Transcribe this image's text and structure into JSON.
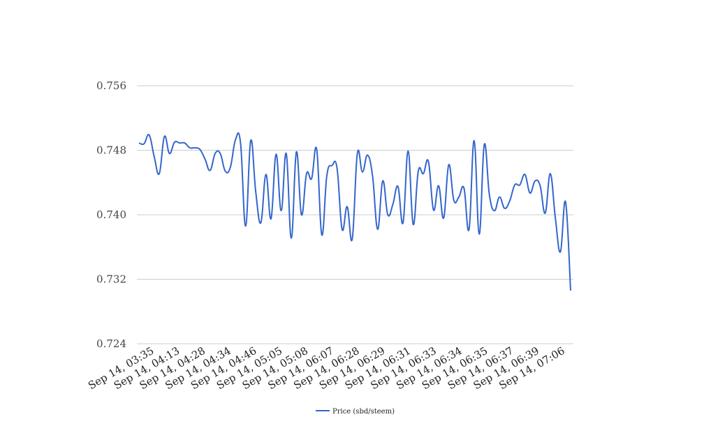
{
  "chart_data": {
    "type": "line",
    "title": "",
    "xlabel": "",
    "ylabel": "",
    "ylim": [
      0.724,
      0.756
    ],
    "yticks": [
      "0.724",
      "0.732",
      "0.740",
      "0.748",
      "0.756"
    ],
    "ytick_values": [
      0.724,
      0.732,
      0.74,
      0.748,
      0.756
    ],
    "grid": true,
    "legend_position": "bottom",
    "x_tick_labels": [
      "Sep 14, 03:35",
      "Sep 14, 04:13",
      "Sep 14, 04:28",
      "Sep 14, 04:34",
      "Sep 14, 04:46",
      "Sep 14, 05:05",
      "Sep 14, 05:08",
      "Sep 14, 06:07",
      "Sep 14, 06:28",
      "Sep 14, 06:29",
      "Sep 14, 06:31",
      "Sep 14, 06:33",
      "Sep 14, 06:34",
      "Sep 14, 06:35",
      "Sep 14, 06:37",
      "Sep 14, 06:39",
      "Sep 14, 07:06"
    ],
    "series": [
      {
        "name": "Price (sbd/steem)",
        "color": "#3366cc",
        "values": [
          0.7489,
          0.7488,
          0.7499,
          0.7472,
          0.7451,
          0.7497,
          0.7476,
          0.749,
          0.7489,
          0.7489,
          0.7483,
          0.7483,
          0.7481,
          0.7469,
          0.7455,
          0.7476,
          0.7476,
          0.7454,
          0.7459,
          0.7493,
          0.7489,
          0.7386,
          0.7492,
          0.7428,
          0.739,
          0.745,
          0.7395,
          0.7475,
          0.7405,
          0.7476,
          0.7371,
          0.7478,
          0.74,
          0.7451,
          0.7445,
          0.7481,
          0.7375,
          0.7449,
          0.7461,
          0.7458,
          0.7382,
          0.741,
          0.737,
          0.7476,
          0.7453,
          0.7474,
          0.7448,
          0.7382,
          0.7442,
          0.74,
          0.7413,
          0.7435,
          0.739,
          0.7479,
          0.7388,
          0.7454,
          0.7451,
          0.7466,
          0.7406,
          0.7436,
          0.7396,
          0.7462,
          0.7418,
          0.7422,
          0.7433,
          0.7382,
          0.7492,
          0.7376,
          0.7487,
          0.7425,
          0.7405,
          0.7422,
          0.7408,
          0.7417,
          0.7437,
          0.7437,
          0.745,
          0.7427,
          0.7442,
          0.7436,
          0.7402,
          0.7451,
          0.7396,
          0.7354,
          0.7416,
          0.7306
        ]
      }
    ]
  }
}
